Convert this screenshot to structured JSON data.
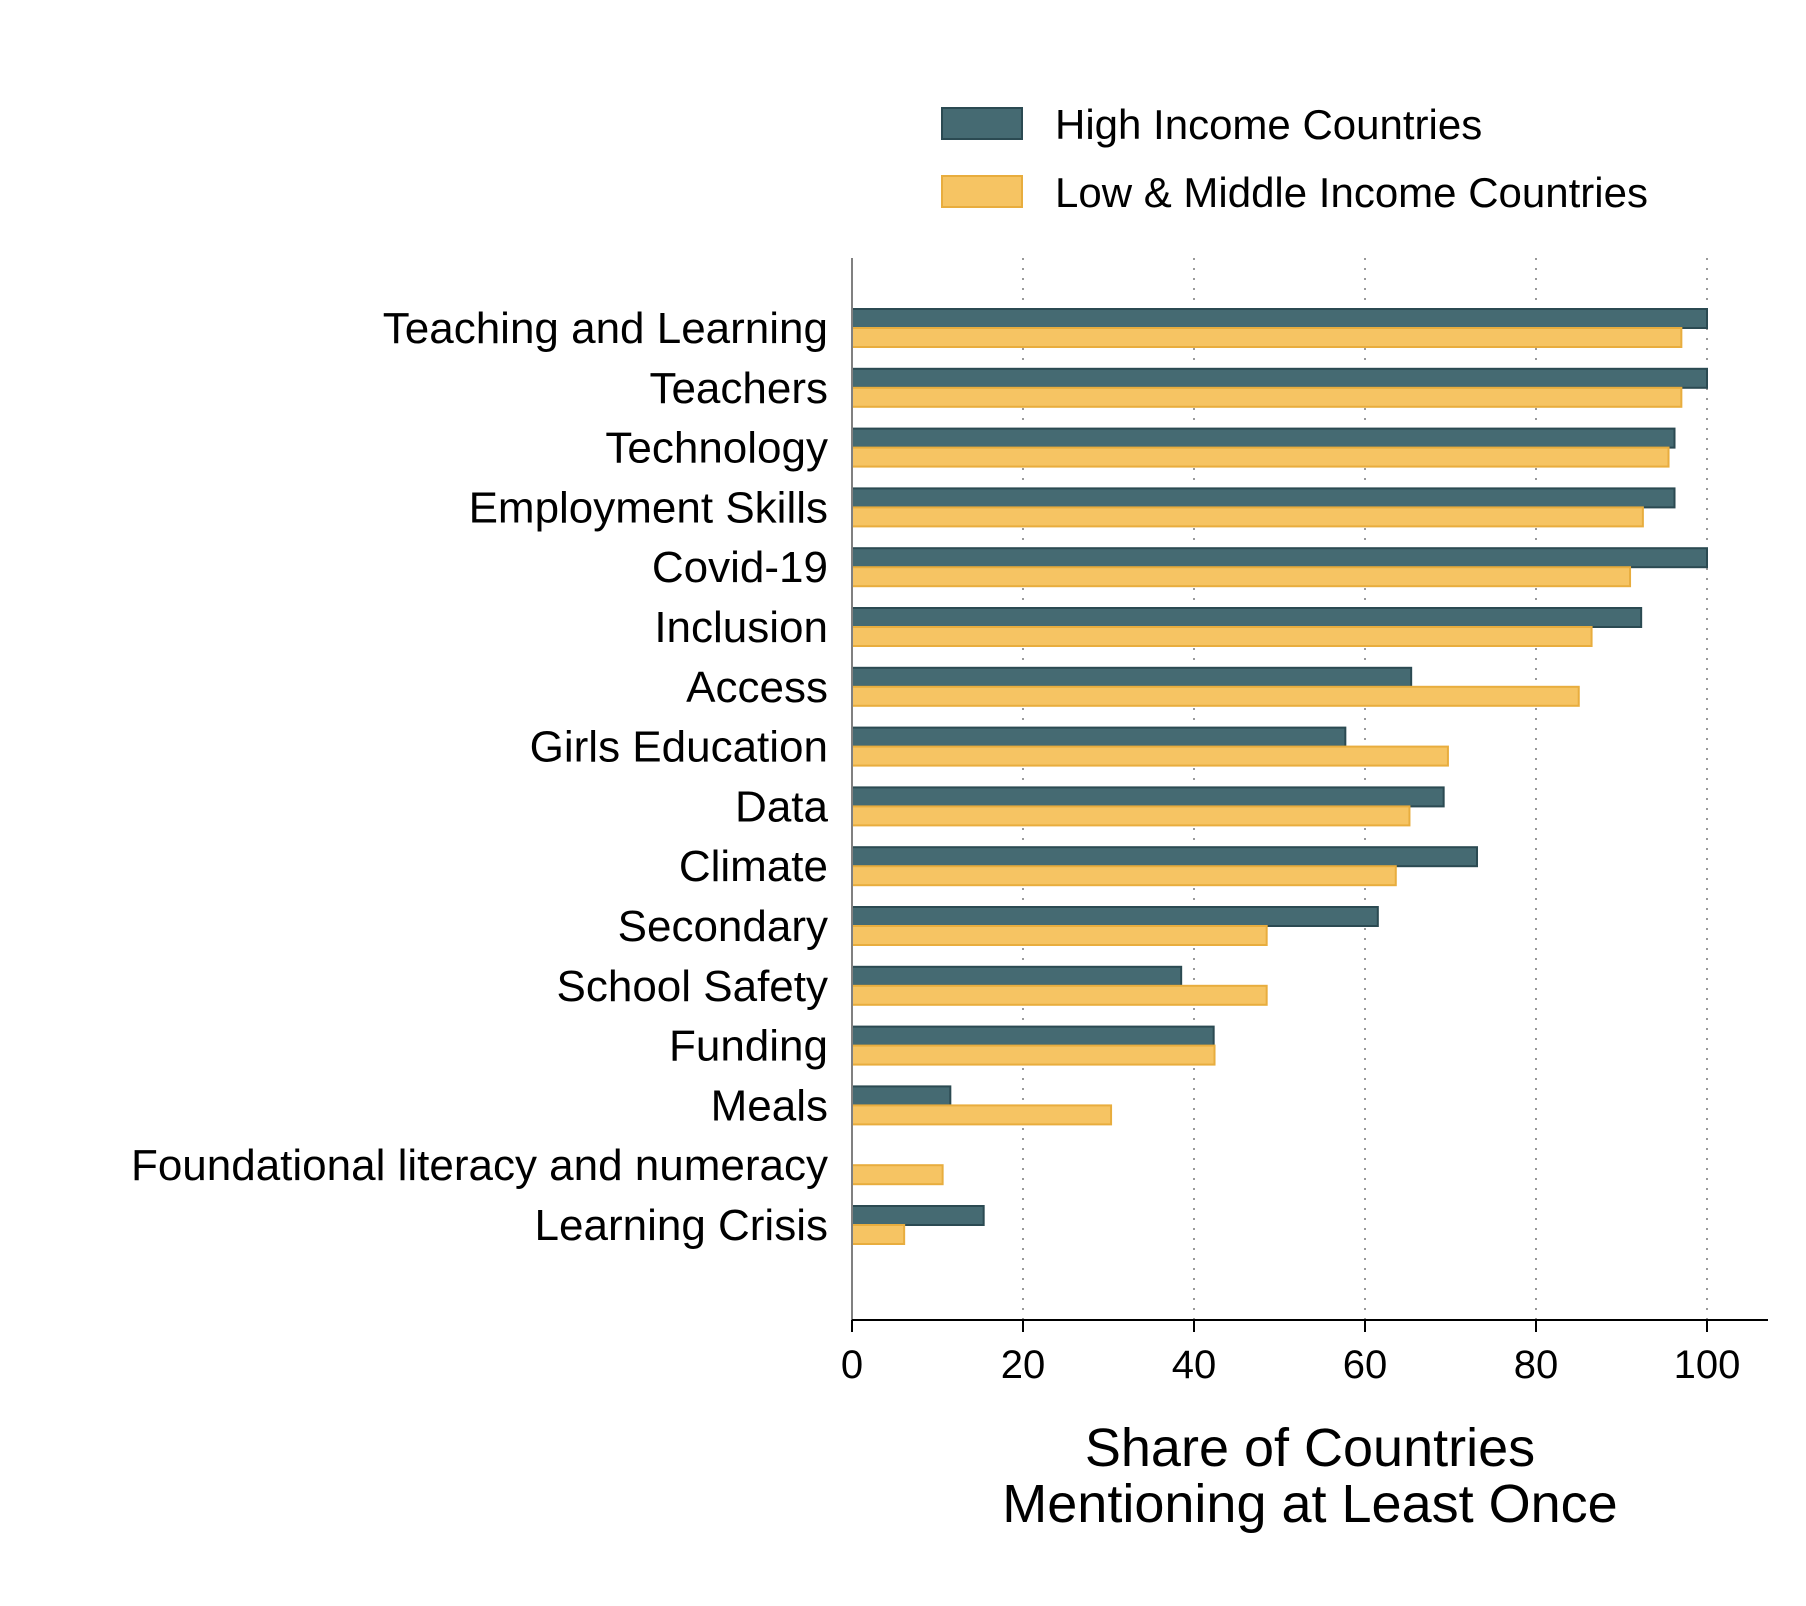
{
  "chart_data": {
    "type": "bar",
    "orientation": "horizontal",
    "categories": [
      "Teaching and Learning",
      "Teachers",
      "Technology",
      "Employment Skills",
      "Covid-19",
      "Inclusion",
      "Access",
      "Girls Education",
      "Data",
      "Climate",
      "Secondary",
      "School Safety",
      "Funding",
      "Meals",
      "Foundational literacy and numeracy",
      "Learning Crisis"
    ],
    "series": [
      {
        "name": "High Income Countries",
        "color": "#456a72",
        "values": [
          100,
          100,
          96.2,
          96.2,
          100,
          92.3,
          65.4,
          57.7,
          69.2,
          73.1,
          61.5,
          38.5,
          42.3,
          11.5,
          0,
          15.4
        ]
      },
      {
        "name": "Low & Middle Income Countries",
        "color": "#f6c463",
        "values": [
          97,
          97,
          95.5,
          92.5,
          91,
          86.5,
          85,
          69.7,
          65.2,
          63.6,
          48.5,
          48.5,
          42.4,
          30.3,
          10.6,
          6.1
        ]
      }
    ],
    "xlabel": "Share of Countries Mentioning at Least Once",
    "xlabel_lines": [
      "Share of Countries",
      "Mentioning at Least Once"
    ],
    "ylabel": "",
    "xlim": [
      0,
      106.6
    ],
    "xticks": [
      0,
      20,
      40,
      60,
      80,
      100
    ],
    "grid": "vertical dotted",
    "legend_position": "top-right"
  }
}
